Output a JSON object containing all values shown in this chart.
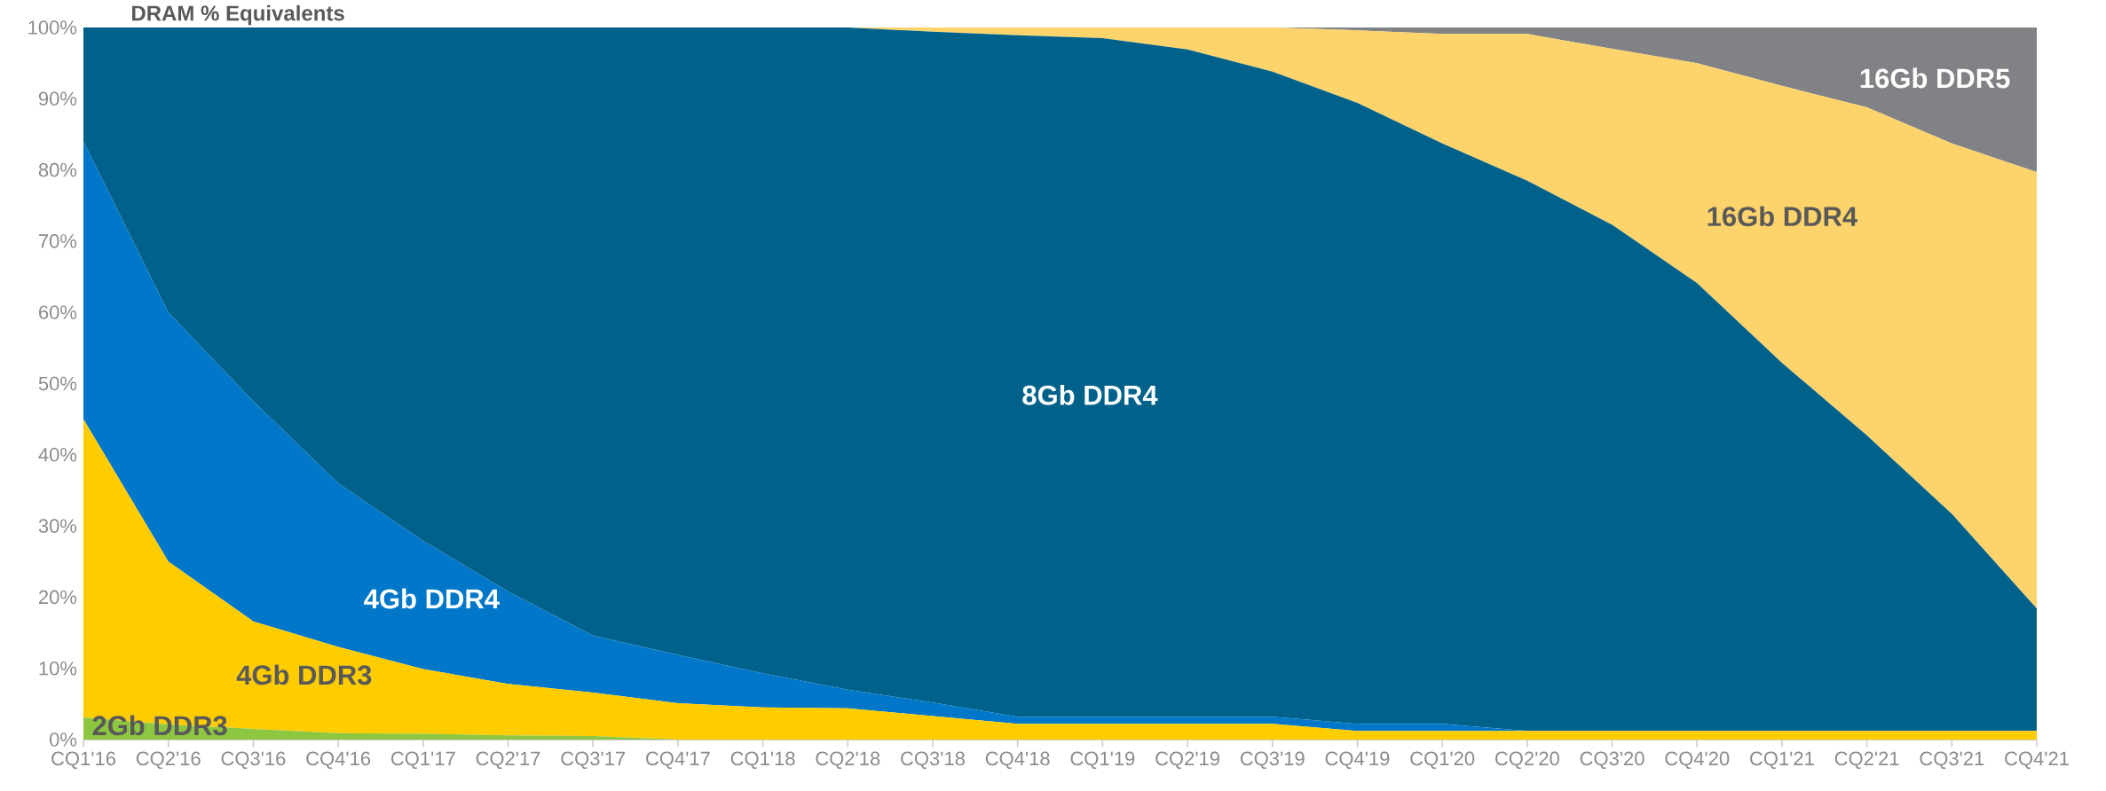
{
  "chart_data": {
    "type": "area",
    "stacked": true,
    "subtitle": "DRAM % Equivalents",
    "categories": [
      "CQ1'16",
      "CQ2'16",
      "CQ3'16",
      "CQ4'16",
      "CQ1'17",
      "CQ2'17",
      "CQ3'17",
      "CQ4'17",
      "CQ1'18",
      "CQ2'18",
      "CQ3'18",
      "CQ4'18",
      "CQ1'19",
      "CQ2'19",
      "CQ3'19",
      "CQ4'19",
      "CQ1'20",
      "CQ2'20",
      "CQ3'20",
      "CQ4'20",
      "CQ1'21",
      "CQ2'21",
      "CQ3'21",
      "CQ4'21"
    ],
    "ylim": [
      0,
      100
    ],
    "yticks": [
      {
        "value": 0,
        "label": "0%"
      },
      {
        "value": 10,
        "label": "10%"
      },
      {
        "value": 20,
        "label": "20%"
      },
      {
        "value": 30,
        "label": "30%"
      },
      {
        "value": 40,
        "label": "40%"
      },
      {
        "value": 50,
        "label": "50%"
      },
      {
        "value": 60,
        "label": "60%"
      },
      {
        "value": 70,
        "label": "70%"
      },
      {
        "value": 80,
        "label": "80%"
      },
      {
        "value": 90,
        "label": "90%"
      },
      {
        "value": 100,
        "label": "100%"
      }
    ],
    "series": [
      {
        "name": "2Gb DDR3",
        "color": "#8dc63f",
        "values": [
          3.1,
          2.1,
          1.5,
          0.9,
          0.8,
          0.6,
          0.5,
          0,
          0,
          0,
          0,
          0,
          0,
          0,
          0,
          0,
          0,
          0,
          0,
          0,
          0,
          0,
          0,
          0
        ]
      },
      {
        "name": "4Gb DDR3",
        "color": "#ffcc00",
        "values": [
          41.9,
          22.9,
          15.1,
          12.1,
          9.1,
          7.2,
          6.1,
          5.1,
          4.5,
          4.4,
          3.3,
          2.2,
          2.2,
          2.2,
          2.2,
          1.2,
          1.2,
          1.2,
          1.2,
          1.2,
          1.2,
          1.2,
          1.2,
          1.2
        ]
      },
      {
        "name": "4Gb DDR4",
        "color": "#0077c8",
        "values": [
          39,
          35,
          30.9,
          23,
          18,
          13,
          8,
          6.8,
          4.8,
          2.6,
          1.9,
          1.0,
          1.0,
          1.0,
          1.0,
          1.0,
          1.0,
          0,
          0,
          0,
          0,
          0,
          0,
          0
        ]
      },
      {
        "name": "8Gb DDR4",
        "color": "#00628a",
        "values": [
          16,
          40,
          52.5,
          64,
          72.1,
          79.2,
          85.4,
          88.1,
          90.7,
          93.0,
          94.2,
          95.7,
          95.3,
          93.7,
          90.6,
          87.2,
          81.5,
          77.3,
          71.1,
          62.9,
          51.7,
          41.5,
          30.5,
          17.2
        ]
      },
      {
        "name": "16Gb DDR4",
        "color": "#fdd36b",
        "values": [
          0,
          0,
          0,
          0,
          0,
          0,
          0,
          0,
          0,
          0,
          0.6,
          1.1,
          1.5,
          3.1,
          6.2,
          10.2,
          15.4,
          20.6,
          24.7,
          30.9,
          38.9,
          46.1,
          52.0,
          61.3
        ]
      },
      {
        "name": "16Gb DDR5",
        "color": "#808285",
        "values": [
          0,
          0,
          0,
          0,
          0,
          0,
          0,
          0,
          0,
          0,
          0,
          0,
          0,
          0,
          0,
          0.4,
          0.9,
          0.9,
          3.0,
          5.0,
          8.2,
          11.2,
          16.3,
          20.3
        ]
      }
    ]
  }
}
